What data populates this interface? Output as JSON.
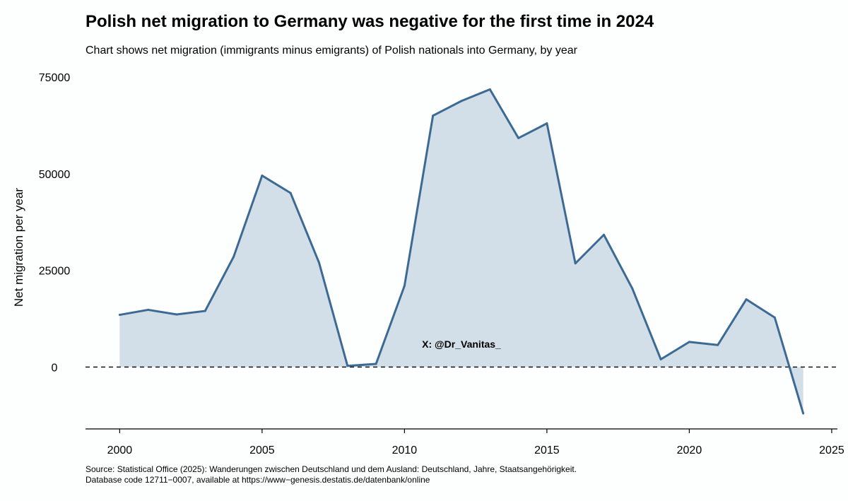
{
  "chart_data": {
    "type": "area",
    "title": "Polish net migration to Germany was negative for the first time in 2024",
    "subtitle": "Chart shows net migration (immigrants minus emigrants) of Polish nationals into Germany, by year",
    "xlabel": "",
    "ylabel": "Net migration per year",
    "xlim": [
      1998.8,
      2025.2
    ],
    "ylim": [
      -16000,
      77000
    ],
    "x_ticks": [
      2000,
      2005,
      2010,
      2015,
      2020,
      2025
    ],
    "y_ticks": [
      0,
      25000,
      50000,
      75000
    ],
    "reference_line": {
      "y": 0,
      "style": "dashed"
    },
    "grid": false,
    "line_color": "#3d6a93",
    "fill_color": "#d2dee8",
    "annotation": "X: @Dr_Vanitas_",
    "annotation_pos": {
      "x": 2012,
      "y": 5000
    },
    "series": [
      {
        "x": [
          2000,
          2001,
          2002,
          2003,
          2004,
          2005,
          2006,
          2007,
          2008,
          2009,
          2010,
          2011,
          2012,
          2013,
          2014,
          2015,
          2016,
          2017,
          2018,
          2019,
          2020,
          2021,
          2022,
          2023,
          2024
        ],
        "values": [
          13500,
          14800,
          13600,
          14500,
          28500,
          49500,
          45000,
          27000,
          300,
          800,
          21000,
          65000,
          68800,
          71800,
          59200,
          63000,
          26800,
          34200,
          20300,
          2000,
          6500,
          5700,
          17500,
          12800,
          -12000
        ]
      }
    ]
  },
  "caption_lines": [
    "Source: Statistical Office (2025): Wanderungen zwischen Deutschland und dem Ausland: Deutschland, Jahre, Staatsangehörigkeit.",
    "Database code 12711−0007, available at https://www−genesis.destatis.de/datenbank/online"
  ]
}
